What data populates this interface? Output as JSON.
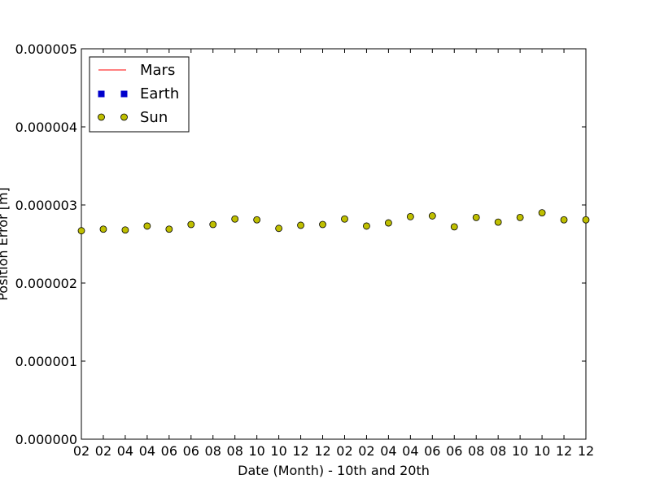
{
  "chart_data": {
    "type": "scatter",
    "xlabel": "Date (Month) - 10th and 20th",
    "ylabel": "Position Error [m]",
    "ylim": [
      0,
      5e-06
    ],
    "yticks": [
      "0.000000",
      "0.000001",
      "0.000002",
      "0.000003",
      "0.000004",
      "0.000005"
    ],
    "ytick_values": [
      0,
      1e-06,
      2e-06,
      3e-06,
      4e-06,
      5e-06
    ],
    "x_tick_labels": [
      "02",
      "02",
      "04",
      "04",
      "06",
      "06",
      "08",
      "08",
      "10",
      "10",
      "12",
      "12",
      "02",
      "02",
      "04",
      "04",
      "06",
      "06",
      "08",
      "08",
      "10",
      "10",
      "12",
      "12"
    ],
    "grid": false,
    "legend_position": "top-left",
    "series": [
      {
        "name": "Mars",
        "marker": "line",
        "color": "#ff0000",
        "values": []
      },
      {
        "name": "Earth",
        "marker": "square",
        "color": "#0000cc",
        "values": []
      },
      {
        "name": "Sun",
        "marker": "circle",
        "color": "#bfbf00",
        "values": [
          2.67e-06,
          2.69e-06,
          2.68e-06,
          2.73e-06,
          2.69e-06,
          2.75e-06,
          2.75e-06,
          2.82e-06,
          2.81e-06,
          2.7e-06,
          2.74e-06,
          2.75e-06,
          2.82e-06,
          2.73e-06,
          2.77e-06,
          2.85e-06,
          2.86e-06,
          2.72e-06,
          2.84e-06,
          2.78e-06,
          2.84e-06,
          2.9e-06,
          2.81e-06,
          2.81e-06
        ]
      }
    ]
  }
}
